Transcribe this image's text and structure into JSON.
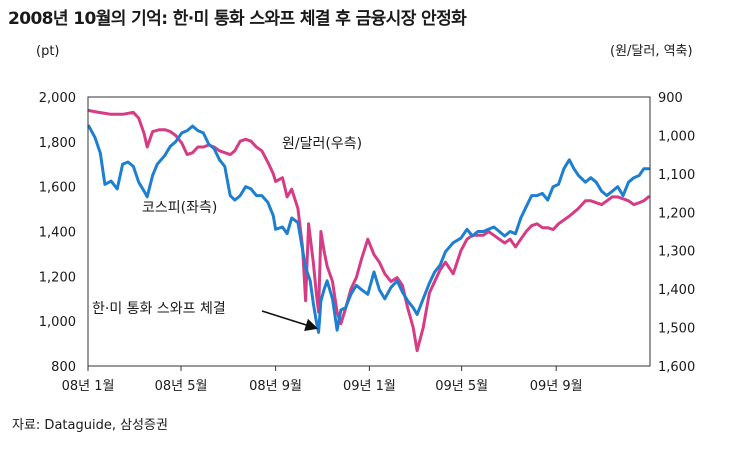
{
  "title": "2008년 10월의 기억: 한·미 통화 스와프 체결 후 금융시장 안정화",
  "source": "자료: Dataguide, 삼성증권",
  "chart_data": {
    "type": "line",
    "title": "2008년 10월의 기억: 한·미 통화 스와프 체결 후 금융시장 안정화",
    "x_tick_labels": [
      "08년 1월",
      "08년 5월",
      "08년 9월",
      "09년 1월",
      "09년 5월",
      "09년 9월"
    ],
    "x_ticks": [
      "2008-01",
      "2008-05",
      "2008-09",
      "2009-01",
      "2009-05",
      "2009-09"
    ],
    "x_range": [
      "2008-01",
      "2009-12"
    ],
    "y_left": {
      "unit": "(pt)",
      "min": 800,
      "max": 2000,
      "ticks": [
        "800",
        "1,000",
        "1,200",
        "1,400",
        "1,600",
        "1,800",
        "2,000"
      ]
    },
    "y_right": {
      "unit": "(원/달러, 역축)",
      "min": 900,
      "max": 1600,
      "inverted": true,
      "ticks": [
        "900",
        "1,000",
        "1,100",
        "1,200",
        "1,300",
        "1,400",
        "1,500",
        "1,600"
      ]
    },
    "grid": false,
    "series": [
      {
        "name": "코스피(좌측)",
        "axis": "left",
        "color": "#1e7fd0",
        "points": [
          [
            "2008-01-02",
            1870
          ],
          [
            "2008-01-10",
            1820
          ],
          [
            "2008-01-17",
            1750
          ],
          [
            "2008-01-23",
            1610
          ],
          [
            "2008-01-31",
            1625
          ],
          [
            "2008-02-08",
            1590
          ],
          [
            "2008-02-15",
            1700
          ],
          [
            "2008-02-22",
            1710
          ],
          [
            "2008-02-29",
            1690
          ],
          [
            "2008-03-07",
            1620
          ],
          [
            "2008-03-14",
            1580
          ],
          [
            "2008-03-18",
            1555
          ],
          [
            "2008-03-25",
            1650
          ],
          [
            "2008-03-31",
            1700
          ],
          [
            "2008-04-10",
            1740
          ],
          [
            "2008-04-17",
            1780
          ],
          [
            "2008-04-24",
            1800
          ],
          [
            "2008-05-02",
            1840
          ],
          [
            "2008-05-09",
            1850
          ],
          [
            "2008-05-16",
            1870
          ],
          [
            "2008-05-23",
            1850
          ],
          [
            "2008-05-30",
            1840
          ],
          [
            "2008-06-06",
            1790
          ],
          [
            "2008-06-13",
            1770
          ],
          [
            "2008-06-20",
            1720
          ],
          [
            "2008-06-27",
            1690
          ],
          [
            "2008-07-04",
            1560
          ],
          [
            "2008-07-10",
            1540
          ],
          [
            "2008-07-17",
            1560
          ],
          [
            "2008-07-24",
            1600
          ],
          [
            "2008-07-31",
            1590
          ],
          [
            "2008-08-07",
            1560
          ],
          [
            "2008-08-14",
            1560
          ],
          [
            "2008-08-22",
            1530
          ],
          [
            "2008-08-29",
            1470
          ],
          [
            "2008-09-01",
            1410
          ],
          [
            "2008-09-10",
            1420
          ],
          [
            "2008-09-16",
            1390
          ],
          [
            "2008-09-22",
            1460
          ],
          [
            "2008-09-30",
            1440
          ],
          [
            "2008-10-06",
            1320
          ],
          [
            "2008-10-10",
            1240
          ],
          [
            "2008-10-16",
            1180
          ],
          [
            "2008-10-20",
            1080
          ],
          [
            "2008-10-24",
            1000
          ],
          [
            "2008-10-27",
            950
          ],
          [
            "2008-10-30",
            1090
          ],
          [
            "2008-11-03",
            1140
          ],
          [
            "2008-11-07",
            1180
          ],
          [
            "2008-11-14",
            1100
          ],
          [
            "2008-11-20",
            960
          ],
          [
            "2008-11-25",
            1050
          ],
          [
            "2008-12-01",
            1060
          ],
          [
            "2008-12-08",
            1120
          ],
          [
            "2008-12-15",
            1160
          ],
          [
            "2008-12-22",
            1140
          ],
          [
            "2008-12-30",
            1120
          ],
          [
            "2009-01-07",
            1220
          ],
          [
            "2009-01-14",
            1140
          ],
          [
            "2009-01-21",
            1100
          ],
          [
            "2009-01-29",
            1150
          ],
          [
            "2009-02-06",
            1180
          ],
          [
            "2009-02-13",
            1130
          ],
          [
            "2009-02-20",
            1090
          ],
          [
            "2009-02-27",
            1060
          ],
          [
            "2009-03-04",
            1030
          ],
          [
            "2009-03-12",
            1100
          ],
          [
            "2009-03-20",
            1170
          ],
          [
            "2009-03-27",
            1220
          ],
          [
            "2009-04-03",
            1250
          ],
          [
            "2009-04-10",
            1310
          ],
          [
            "2009-04-20",
            1350
          ],
          [
            "2009-04-30",
            1370
          ],
          [
            "2009-05-08",
            1410
          ],
          [
            "2009-05-15",
            1380
          ],
          [
            "2009-05-22",
            1400
          ],
          [
            "2009-05-29",
            1400
          ],
          [
            "2009-06-05",
            1410
          ],
          [
            "2009-06-12",
            1420
          ],
          [
            "2009-06-19",
            1400
          ],
          [
            "2009-06-26",
            1380
          ],
          [
            "2009-07-03",
            1400
          ],
          [
            "2009-07-10",
            1390
          ],
          [
            "2009-07-17",
            1460
          ],
          [
            "2009-07-24",
            1510
          ],
          [
            "2009-07-31",
            1560
          ],
          [
            "2009-08-07",
            1560
          ],
          [
            "2009-08-14",
            1570
          ],
          [
            "2009-08-21",
            1540
          ],
          [
            "2009-08-28",
            1600
          ],
          [
            "2009-09-04",
            1610
          ],
          [
            "2009-09-11",
            1680
          ],
          [
            "2009-09-18",
            1720
          ],
          [
            "2009-09-24",
            1680
          ],
          [
            "2009-09-30",
            1650
          ],
          [
            "2009-10-09",
            1620
          ],
          [
            "2009-10-16",
            1640
          ],
          [
            "2009-10-23",
            1620
          ],
          [
            "2009-10-30",
            1580
          ],
          [
            "2009-11-06",
            1560
          ],
          [
            "2009-11-13",
            1580
          ],
          [
            "2009-11-20",
            1600
          ],
          [
            "2009-11-27",
            1560
          ],
          [
            "2009-12-04",
            1620
          ],
          [
            "2009-12-11",
            1640
          ],
          [
            "2009-12-18",
            1650
          ],
          [
            "2009-12-24",
            1680
          ],
          [
            "2009-12-30",
            1680
          ]
        ]
      },
      {
        "name": "원/달러(우측)",
        "axis": "right",
        "color": "#d63c86",
        "points": [
          [
            "2008-01-02",
            935
          ],
          [
            "2008-01-15",
            940
          ],
          [
            "2008-01-31",
            945
          ],
          [
            "2008-02-15",
            945
          ],
          [
            "2008-02-29",
            940
          ],
          [
            "2008-03-07",
            955
          ],
          [
            "2008-03-14",
            995
          ],
          [
            "2008-03-18",
            1030
          ],
          [
            "2008-03-25",
            990
          ],
          [
            "2008-04-03",
            985
          ],
          [
            "2008-04-10",
            985
          ],
          [
            "2008-04-17",
            990
          ],
          [
            "2008-04-24",
            1000
          ],
          [
            "2008-05-02",
            1020
          ],
          [
            "2008-05-09",
            1050
          ],
          [
            "2008-05-16",
            1045
          ],
          [
            "2008-05-23",
            1030
          ],
          [
            "2008-05-30",
            1030
          ],
          [
            "2008-06-06",
            1025
          ],
          [
            "2008-06-13",
            1030
          ],
          [
            "2008-06-20",
            1040
          ],
          [
            "2008-06-27",
            1045
          ],
          [
            "2008-07-04",
            1050
          ],
          [
            "2008-07-10",
            1040
          ],
          [
            "2008-07-17",
            1015
          ],
          [
            "2008-07-24",
            1010
          ],
          [
            "2008-07-31",
            1015
          ],
          [
            "2008-08-07",
            1030
          ],
          [
            "2008-08-14",
            1040
          ],
          [
            "2008-08-22",
            1070
          ],
          [
            "2008-08-29",
            1100
          ],
          [
            "2008-09-01",
            1120
          ],
          [
            "2008-09-10",
            1110
          ],
          [
            "2008-09-16",
            1160
          ],
          [
            "2008-09-22",
            1140
          ],
          [
            "2008-09-30",
            1190
          ],
          [
            "2008-10-06",
            1290
          ],
          [
            "2008-10-10",
            1430
          ],
          [
            "2008-10-14",
            1230
          ],
          [
            "2008-10-20",
            1330
          ],
          [
            "2008-10-24",
            1410
          ],
          [
            "2008-10-27",
            1460
          ],
          [
            "2008-10-30",
            1250
          ],
          [
            "2008-11-03",
            1300
          ],
          [
            "2008-11-07",
            1340
          ],
          [
            "2008-11-14",
            1380
          ],
          [
            "2008-11-20",
            1460
          ],
          [
            "2008-11-25",
            1490
          ],
          [
            "2008-12-01",
            1450
          ],
          [
            "2008-12-08",
            1400
          ],
          [
            "2008-12-15",
            1370
          ],
          [
            "2008-12-22",
            1320
          ],
          [
            "2008-12-30",
            1270
          ],
          [
            "2009-01-07",
            1310
          ],
          [
            "2009-01-14",
            1330
          ],
          [
            "2009-01-21",
            1360
          ],
          [
            "2009-01-29",
            1380
          ],
          [
            "2009-02-06",
            1370
          ],
          [
            "2009-02-13",
            1390
          ],
          [
            "2009-02-20",
            1450
          ],
          [
            "2009-02-27",
            1500
          ],
          [
            "2009-03-04",
            1560
          ],
          [
            "2009-03-12",
            1500
          ],
          [
            "2009-03-20",
            1410
          ],
          [
            "2009-03-27",
            1380
          ],
          [
            "2009-04-03",
            1350
          ],
          [
            "2009-04-10",
            1330
          ],
          [
            "2009-04-20",
            1360
          ],
          [
            "2009-04-30",
            1300
          ],
          [
            "2009-05-08",
            1270
          ],
          [
            "2009-05-15",
            1260
          ],
          [
            "2009-05-22",
            1260
          ],
          [
            "2009-05-29",
            1260
          ],
          [
            "2009-06-05",
            1250
          ],
          [
            "2009-06-12",
            1260
          ],
          [
            "2009-06-19",
            1270
          ],
          [
            "2009-06-26",
            1280
          ],
          [
            "2009-07-03",
            1270
          ],
          [
            "2009-07-10",
            1290
          ],
          [
            "2009-07-17",
            1270
          ],
          [
            "2009-07-24",
            1250
          ],
          [
            "2009-07-31",
            1235
          ],
          [
            "2009-08-07",
            1230
          ],
          [
            "2009-08-14",
            1240
          ],
          [
            "2009-08-21",
            1240
          ],
          [
            "2009-08-28",
            1245
          ],
          [
            "2009-09-04",
            1230
          ],
          [
            "2009-09-11",
            1220
          ],
          [
            "2009-09-18",
            1210
          ],
          [
            "2009-09-24",
            1200
          ],
          [
            "2009-09-30",
            1190
          ],
          [
            "2009-10-09",
            1170
          ],
          [
            "2009-10-16",
            1170
          ],
          [
            "2009-10-23",
            1175
          ],
          [
            "2009-10-30",
            1180
          ],
          [
            "2009-11-06",
            1170
          ],
          [
            "2009-11-13",
            1160
          ],
          [
            "2009-11-20",
            1160
          ],
          [
            "2009-11-27",
            1165
          ],
          [
            "2009-12-04",
            1170
          ],
          [
            "2009-12-11",
            1180
          ],
          [
            "2009-12-18",
            1175
          ],
          [
            "2009-12-24",
            1170
          ],
          [
            "2009-12-30",
            1160
          ]
        ]
      }
    ],
    "annotation": {
      "text": "한·미 통화 스와프 체결",
      "target": [
        "2008-10-30",
        950
      ],
      "axis": "left"
    }
  }
}
